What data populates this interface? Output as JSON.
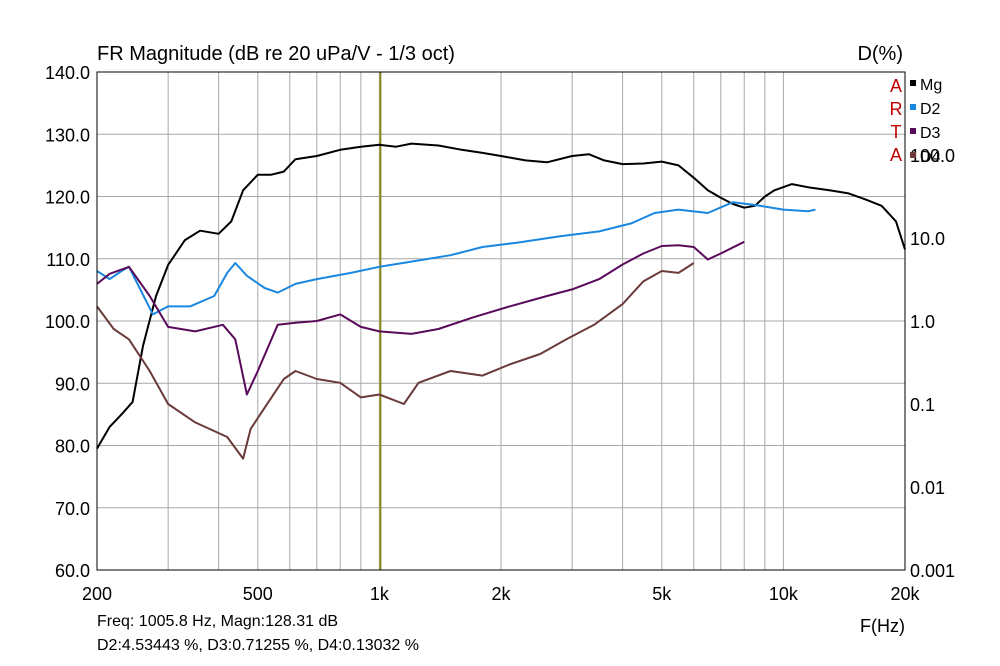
{
  "chart_data": {
    "type": "line",
    "title": "FR Magnitude (dB re 20 uPa/V - 1/3 oct)",
    "xlabel": "F(Hz)",
    "ylabel_right": "D(%)",
    "x_scale": "log",
    "xlim": [
      200,
      20000
    ],
    "ylim": [
      60,
      140
    ],
    "y_ticks": [
      "140.0",
      "130.0",
      "120.0",
      "110.0",
      "100.0",
      "90.0",
      "80.0",
      "70.0",
      "60.0"
    ],
    "y_tick_values": [
      140,
      130,
      120,
      110,
      100,
      90,
      80,
      70,
      60
    ],
    "x_ticks": [
      "200",
      "500",
      "1k",
      "2k",
      "5k",
      "10k",
      "20k"
    ],
    "x_tick_values": [
      200,
      500,
      1000,
      2000,
      5000,
      10000,
      20000
    ],
    "right_ticks": [
      "100.0",
      "10.0",
      "1.0",
      "0.1",
      "0.01",
      "0.001"
    ],
    "right_tick_values": [
      100,
      10,
      1,
      0.1,
      0.01,
      0.001
    ],
    "right_scale": "log",
    "right_ylim": [
      0.001,
      1000
    ],
    "grid": true,
    "legend_position": "top-right",
    "cursor_x": 1005.8,
    "brand": [
      "A",
      "R",
      "T",
      "A"
    ],
    "series": [
      {
        "name": "Mg",
        "color": "#000000",
        "axis": "left",
        "points": [
          [
            200,
            79.5
          ],
          [
            215,
            83
          ],
          [
            230,
            85
          ],
          [
            245,
            87
          ],
          [
            260,
            96
          ],
          [
            280,
            104
          ],
          [
            300,
            109
          ],
          [
            330,
            113
          ],
          [
            360,
            114.5
          ],
          [
            400,
            114
          ],
          [
            430,
            116
          ],
          [
            460,
            121
          ],
          [
            500,
            123.5
          ],
          [
            540,
            123.5
          ],
          [
            580,
            124
          ],
          [
            620,
            126
          ],
          [
            700,
            126.5
          ],
          [
            800,
            127.5
          ],
          [
            900,
            128
          ],
          [
            1000,
            128.3
          ],
          [
            1100,
            128
          ],
          [
            1200,
            128.5
          ],
          [
            1400,
            128.2
          ],
          [
            1600,
            127.5
          ],
          [
            1800,
            127
          ],
          [
            2000,
            126.5
          ],
          [
            2300,
            125.8
          ],
          [
            2600,
            125.5
          ],
          [
            3000,
            126.5
          ],
          [
            3300,
            126.8
          ],
          [
            3600,
            125.8
          ],
          [
            4000,
            125.2
          ],
          [
            4500,
            125.3
          ],
          [
            5000,
            125.6
          ],
          [
            5500,
            125
          ],
          [
            6000,
            123
          ],
          [
            6500,
            121
          ],
          [
            7000,
            119.8
          ],
          [
            7500,
            118.8
          ],
          [
            8000,
            118.2
          ],
          [
            8500,
            118.5
          ],
          [
            9000,
            120
          ],
          [
            9500,
            121
          ],
          [
            10500,
            122
          ],
          [
            11500,
            121.5
          ],
          [
            13000,
            121
          ],
          [
            14500,
            120.5
          ],
          [
            16000,
            119.5
          ],
          [
            17500,
            118.5
          ],
          [
            19000,
            116
          ],
          [
            20000,
            111.5
          ]
        ]
      },
      {
        "name": "D2",
        "color": "#1a87e0",
        "axis": "right",
        "points": [
          [
            200,
            4.0
          ],
          [
            215,
            3.2
          ],
          [
            230,
            4.0
          ],
          [
            240,
            4.5
          ],
          [
            255,
            2.5
          ],
          [
            275,
            1.2
          ],
          [
            300,
            1.5
          ],
          [
            340,
            1.5
          ],
          [
            390,
            2.0
          ],
          [
            420,
            3.8
          ],
          [
            440,
            5.0
          ],
          [
            470,
            3.5
          ],
          [
            520,
            2.5
          ],
          [
            560,
            2.2
          ],
          [
            620,
            2.8
          ],
          [
            700,
            3.2
          ],
          [
            850,
            3.8
          ],
          [
            1000,
            4.5
          ],
          [
            1200,
            5.2
          ],
          [
            1500,
            6.2
          ],
          [
            1800,
            7.8
          ],
          [
            2200,
            8.8
          ],
          [
            2800,
            10.5
          ],
          [
            3500,
            12
          ],
          [
            4200,
            15
          ],
          [
            4800,
            20
          ],
          [
            5500,
            22
          ],
          [
            6500,
            20
          ],
          [
            7500,
            27
          ],
          [
            8500,
            25
          ],
          [
            10000,
            22
          ],
          [
            11500,
            21
          ],
          [
            12000,
            22
          ]
        ]
      },
      {
        "name": "D3",
        "color": "#5a0a5a",
        "axis": "right",
        "points": [
          [
            200,
            2.8
          ],
          [
            215,
            3.7
          ],
          [
            240,
            4.5
          ],
          [
            270,
            2.0
          ],
          [
            300,
            0.85
          ],
          [
            350,
            0.75
          ],
          [
            410,
            0.9
          ],
          [
            440,
            0.6
          ],
          [
            470,
            0.13
          ],
          [
            500,
            0.25
          ],
          [
            560,
            0.9
          ],
          [
            620,
            0.95
          ],
          [
            700,
            1.0
          ],
          [
            800,
            1.2
          ],
          [
            900,
            0.85
          ],
          [
            1000,
            0.75
          ],
          [
            1200,
            0.7
          ],
          [
            1400,
            0.8
          ],
          [
            1700,
            1.1
          ],
          [
            2100,
            1.5
          ],
          [
            2600,
            2.0
          ],
          [
            3000,
            2.4
          ],
          [
            3500,
            3.2
          ],
          [
            4000,
            4.8
          ],
          [
            4500,
            6.5
          ],
          [
            5000,
            8.0
          ],
          [
            5500,
            8.2
          ],
          [
            6000,
            7.8
          ],
          [
            6500,
            5.5
          ],
          [
            7000,
            6.5
          ],
          [
            8000,
            9.0
          ]
        ]
      },
      {
        "name": "D4",
        "color": "#6b3a3a",
        "axis": "right",
        "points": [
          [
            200,
            1.5
          ],
          [
            220,
            0.8
          ],
          [
            240,
            0.6
          ],
          [
            270,
            0.25
          ],
          [
            300,
            0.1
          ],
          [
            350,
            0.06
          ],
          [
            420,
            0.04
          ],
          [
            460,
            0.022
          ],
          [
            480,
            0.05
          ],
          [
            520,
            0.09
          ],
          [
            580,
            0.2
          ],
          [
            620,
            0.25
          ],
          [
            700,
            0.2
          ],
          [
            800,
            0.18
          ],
          [
            900,
            0.12
          ],
          [
            1000,
            0.13
          ],
          [
            1150,
            0.1
          ],
          [
            1250,
            0.18
          ],
          [
            1500,
            0.25
          ],
          [
            1800,
            0.22
          ],
          [
            2100,
            0.3
          ],
          [
            2500,
            0.4
          ],
          [
            2900,
            0.6
          ],
          [
            3400,
            0.9
          ],
          [
            4000,
            1.6
          ],
          [
            4500,
            3.0
          ],
          [
            5000,
            4.0
          ],
          [
            5500,
            3.8
          ],
          [
            6000,
            5.0
          ]
        ]
      }
    ]
  },
  "readout": {
    "line1": "Freq: 1005.8 Hz, Magn:128.31 dB",
    "line2": "D2:4.53443 %, D3:0.71255 %, D4:0.13032 %"
  }
}
